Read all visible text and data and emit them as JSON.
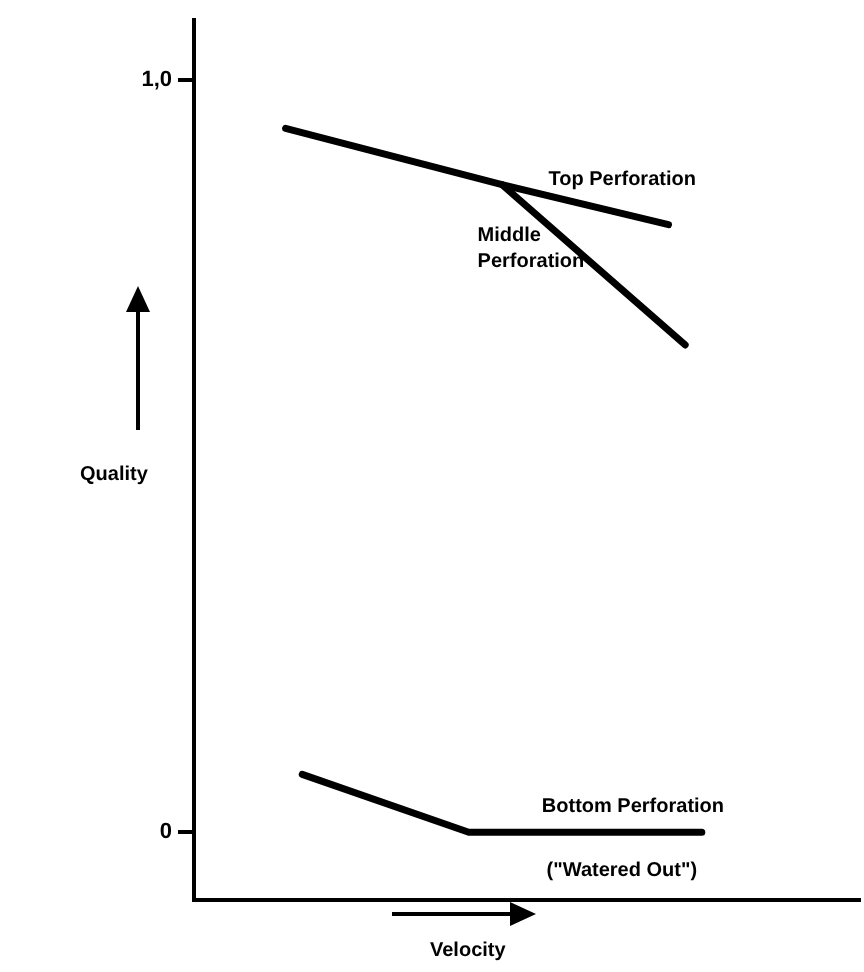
{
  "chart_data": {
    "type": "line",
    "xlabel": "Velocity",
    "ylabel": "Quality",
    "categories": [
      null,
      null,
      null,
      null,
      null,
      null,
      null,
      null,
      null,
      null,
      null,
      null,
      null,
      null,
      null,
      null,
      null,
      null,
      null,
      null,
      null,
      null,
      null,
      null,
      null,
      null,
      null,
      null,
      null,
      null,
      null,
      null,
      null,
      null,
      null,
      null,
      null,
      null,
      null,
      null
    ],
    "ylim": [
      -0.09,
      1.08
    ],
    "yticks": [
      0,
      {
        "value": 1,
        "label": "1,0"
      }
    ],
    "tick_labels": "y",
    "grid": false,
    "legend": false,
    "marker": "none",
    "line_style": "solid",
    "series": [
      {
        "name": "Top Perforation",
        "color": "#000000",
        "values": [
          null,
          null,
          null,
          null,
          null,
          0.936,
          null,
          null,
          null,
          null,
          null,
          null,
          null,
          null,
          null,
          null,
          null,
          null,
          0.861,
          null,
          null,
          null,
          null,
          null,
          null,
          null,
          null,
          null,
          0.808,
          null,
          null,
          null,
          null,
          null,
          null,
          null,
          null,
          null,
          null,
          null
        ]
      },
      {
        "name": "Middle Perforation",
        "color": "#000000",
        "values": [
          null,
          null,
          null,
          null,
          null,
          null,
          null,
          null,
          null,
          null,
          null,
          null,
          null,
          null,
          null,
          null,
          null,
          null,
          0.861,
          null,
          null,
          null,
          null,
          null,
          null,
          null,
          null,
          null,
          null,
          0.648,
          null,
          null,
          null,
          null,
          null,
          null,
          null,
          null,
          null,
          null
        ]
      },
      {
        "name": "Bottom Perforation",
        "color": "#000000",
        "values": [
          null,
          null,
          null,
          null,
          null,
          null,
          0.077,
          null,
          null,
          null,
          null,
          null,
          null,
          null,
          null,
          null,
          0,
          null,
          null,
          null,
          null,
          null,
          null,
          null,
          null,
          null,
          null,
          null,
          null,
          null,
          0,
          null,
          null,
          null,
          null,
          null,
          null,
          null,
          null,
          null
        ]
      }
    ],
    "annotations": [
      "(\"Watered Out\")"
    ]
  }
}
